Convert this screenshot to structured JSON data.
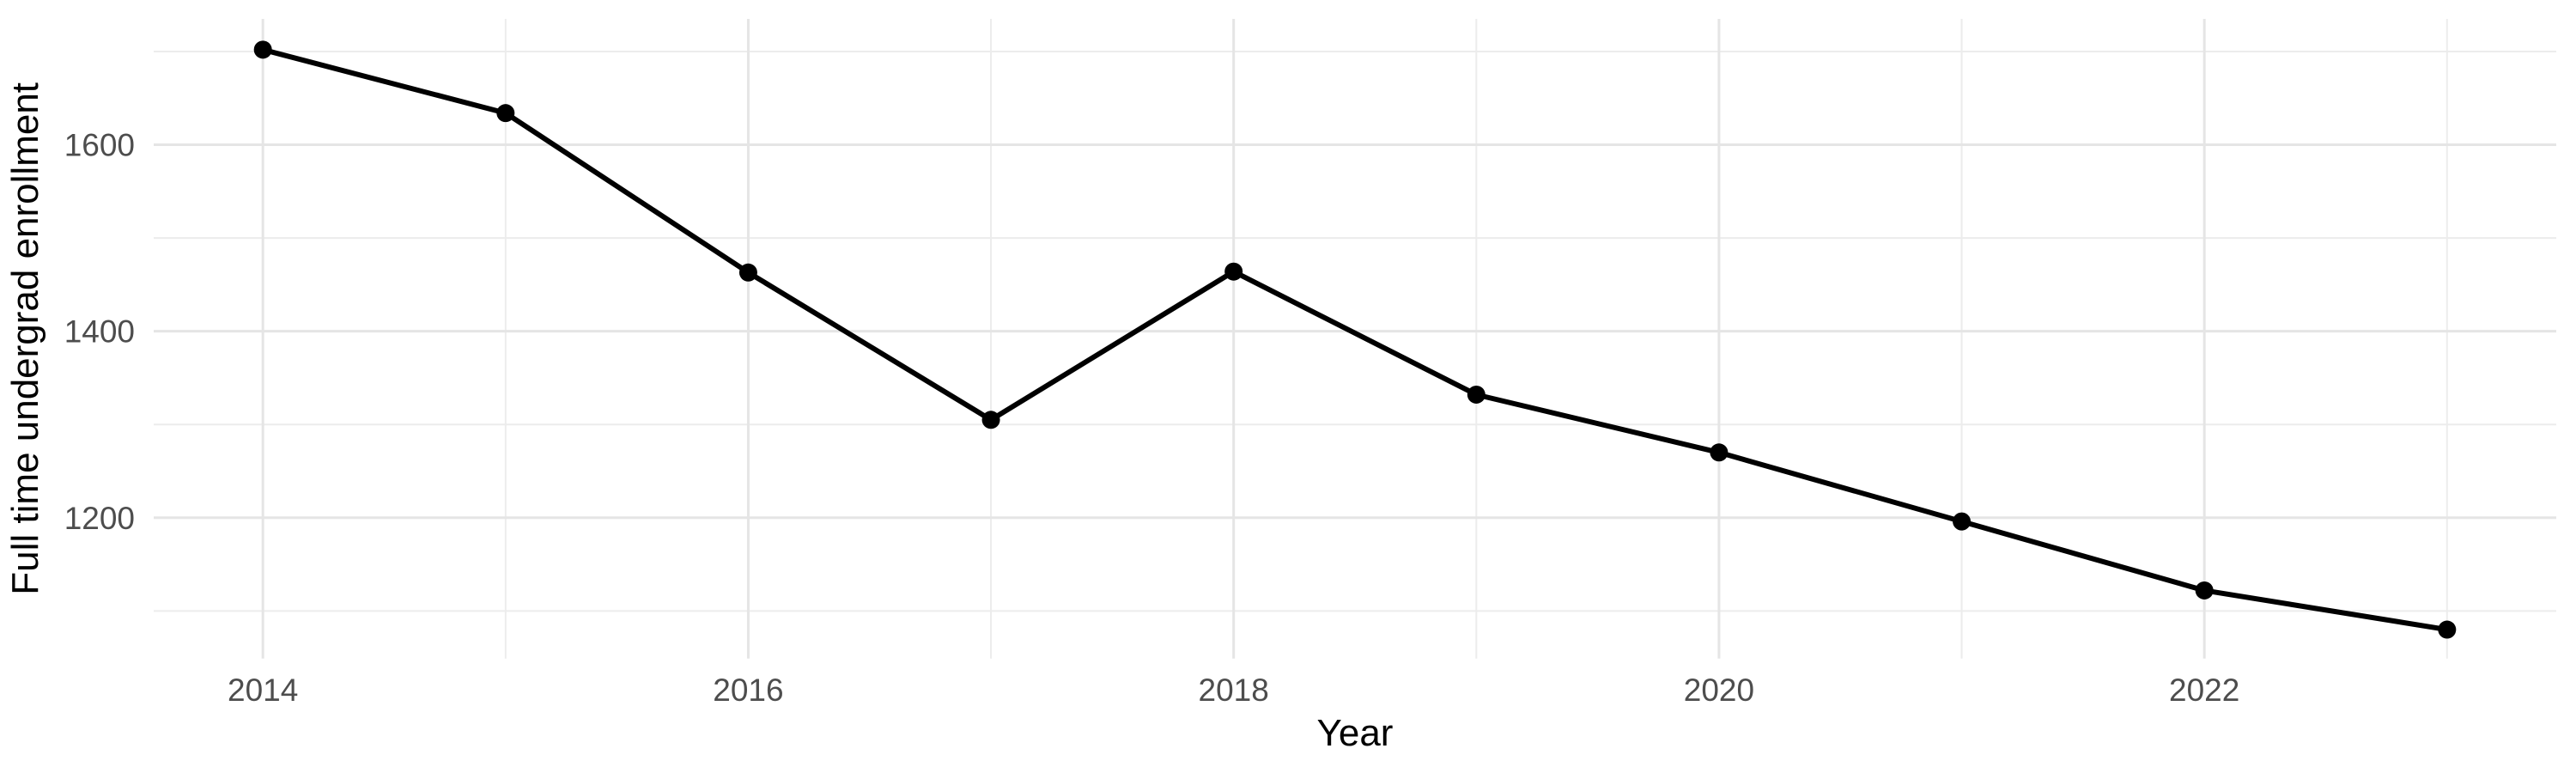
{
  "chart_data": {
    "type": "line",
    "title": "",
    "xlabel": "Year",
    "ylabel": "Full time undergrad enrollment",
    "x": [
      2014,
      2015,
      2016,
      2017,
      2018,
      2019,
      2020,
      2021,
      2022,
      2023
    ],
    "values": [
      1702,
      1634,
      1463,
      1305,
      1464,
      1332,
      1270,
      1196,
      1122,
      1080
    ],
    "series_name": "Full time undergrad enrollment",
    "x_ticks": [
      2014,
      2016,
      2018,
      2020,
      2022
    ],
    "x_minor_ticks": [
      2015,
      2017,
      2019,
      2021,
      2023
    ],
    "y_ticks": [
      1200,
      1400,
      1600
    ],
    "y_minor_ticks": [
      1100,
      1300,
      1500,
      1700
    ],
    "xlim": [
      2013.55,
      2023.45
    ],
    "ylim": [
      1049,
      1735
    ],
    "grid": true,
    "legend": false,
    "colors": {
      "background": "#FFFFFF",
      "line": "#000000",
      "point": "#000000",
      "grid_major": "#E5E5E5",
      "grid_minor": "#ECECEC",
      "tick_label": "#4D4D4D",
      "axis_title": "#000000"
    }
  }
}
